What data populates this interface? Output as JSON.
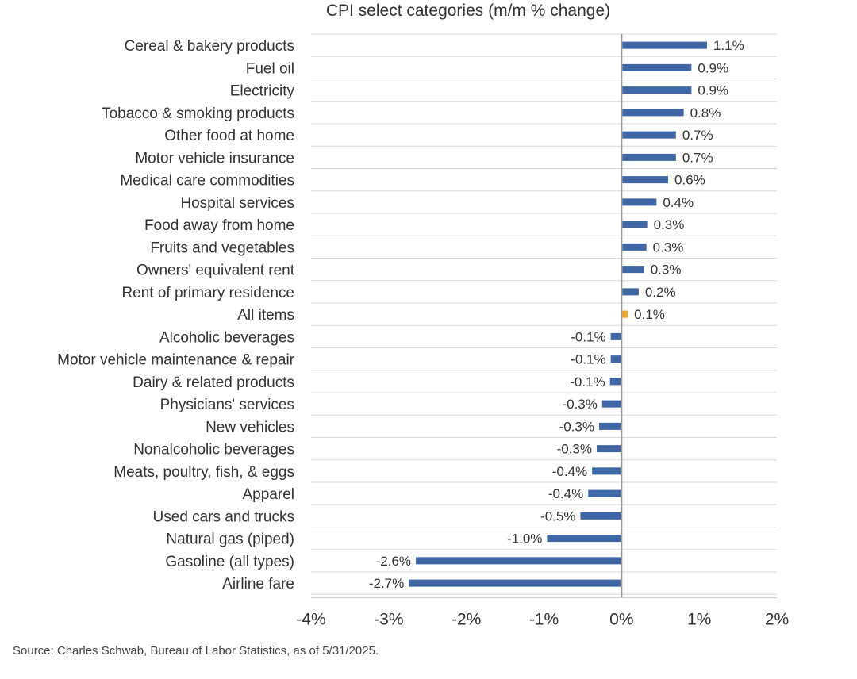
{
  "chart_data": {
    "type": "bar",
    "orientation": "horizontal",
    "title": "CPI select categories (m/m % change)",
    "categories": [
      "Cereal & bakery products",
      "Fuel oil",
      "Electricity",
      "Tobacco & smoking products",
      "Other food at home",
      "Motor vehicle insurance",
      "Medical care commodities",
      "Hospital services",
      "Food away from home",
      "Fruits and vegetables",
      "Owners' equivalent rent",
      "Rent of primary residence",
      "All items",
      "Alcoholic beverages",
      "Motor vehicle maintenance & repair",
      "Dairy & related products",
      "Physicians' services",
      "New vehicles",
      "Nonalcoholic beverages",
      "Meats, poultry, fish, & eggs",
      "Apparel",
      "Used cars and trucks",
      "Natural gas (piped)",
      "Gasoline (all types)",
      "Airline fare"
    ],
    "values": [
      1.1,
      0.9,
      0.9,
      0.8,
      0.7,
      0.7,
      0.6,
      0.4,
      0.3,
      0.3,
      0.3,
      0.2,
      0.1,
      -0.1,
      -0.1,
      -0.1,
      -0.3,
      -0.3,
      -0.3,
      -0.4,
      -0.4,
      -0.5,
      -1.0,
      -2.6,
      -2.7
    ],
    "plotted_values": [
      1.1,
      0.9,
      0.9,
      0.8,
      0.7,
      0.7,
      0.6,
      0.45,
      0.33,
      0.32,
      0.29,
      0.22,
      0.08,
      -0.14,
      -0.14,
      -0.15,
      -0.25,
      -0.29,
      -0.32,
      -0.38,
      -0.43,
      -0.53,
      -0.96,
      -2.65,
      -2.74
    ],
    "value_labels": [
      "1.1%",
      "0.9%",
      "0.9%",
      "0.8%",
      "0.7%",
      "0.7%",
      "0.6%",
      "0.4%",
      "0.3%",
      "0.3%",
      "0.3%",
      "0.2%",
      "0.1%",
      "-0.1%",
      "-0.1%",
      "-0.1%",
      "-0.3%",
      "-0.3%",
      "-0.3%",
      "-0.4%",
      "-0.4%",
      "-0.5%",
      "-1.0%",
      "-2.6%",
      "-2.7%"
    ],
    "highlight_category": "All items",
    "xlim": [
      -4,
      2
    ],
    "x_ticks": [
      -4,
      -3,
      -2,
      -1,
      0,
      1,
      2
    ],
    "x_tick_labels": [
      "-4%",
      "-3%",
      "-2%",
      "-1%",
      "0%",
      "1%",
      "2%"
    ],
    "xlabel": "",
    "ylabel": "",
    "grid": true,
    "colors": {
      "bar": "#3f66a5",
      "highlight": "#f5a623",
      "grid": "#d9d9d9",
      "zero_line": "#999999"
    }
  },
  "source": "Source: Charles Schwab, Bureau of Labor Statistics, as of  5/31/2025."
}
